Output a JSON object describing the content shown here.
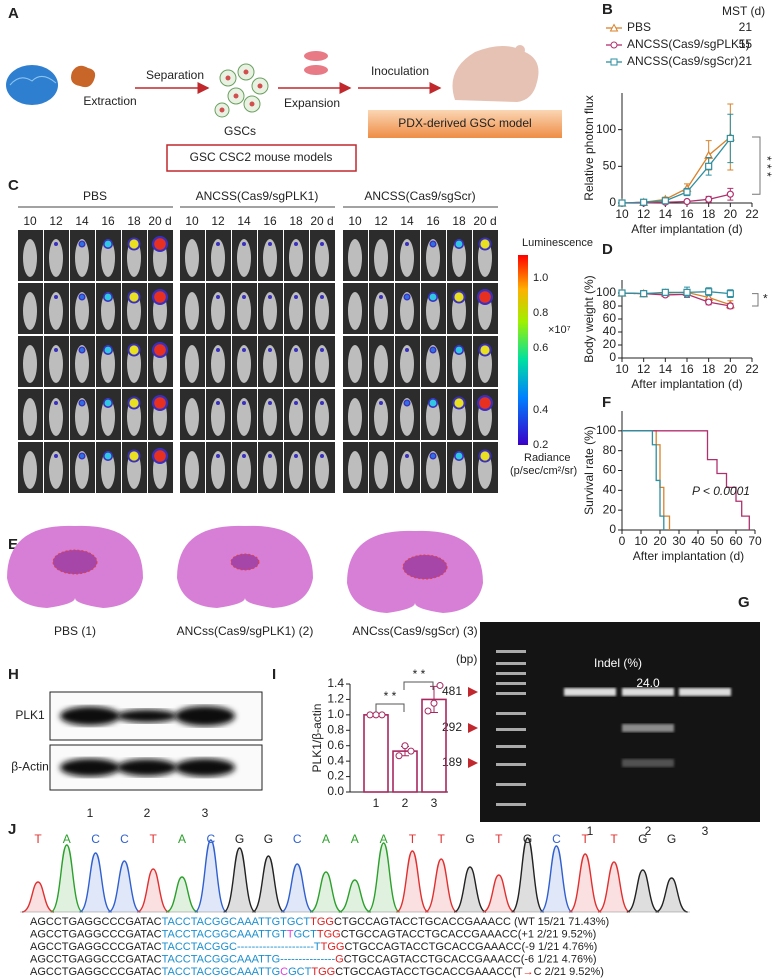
{
  "panel_labels": [
    "A",
    "B",
    "C",
    "D",
    "E",
    "F",
    "G",
    "H",
    "I",
    "J"
  ],
  "panel_a": {
    "steps": [
      "Extraction",
      "Separation",
      "GSCs",
      "Expansion",
      "Inoculation"
    ],
    "model": "PDX-derived GSC model",
    "box": "GSC CSC2 mouse models"
  },
  "panel_c": {
    "groups": [
      "PBS",
      "ANCSS(Cas9/sgPLK1)",
      "ANCSS(Cas9/sgScr)"
    ],
    "days": [
      "10",
      "12",
      "14",
      "16",
      "18",
      "20 d"
    ],
    "colorbar": {
      "title": "Luminescence",
      "ticks": [
        "1.0",
        "0.8",
        "0.6",
        "0.4",
        "0.2"
      ],
      "multiplier": "×10⁷",
      "unit_title": "Radiance",
      "unit": "(p/sec/cm²/sr)"
    }
  },
  "panel_e": {
    "labels": [
      "PBS (1)",
      "ANCss(Cas9/sgPLK1) (2)",
      "ANCss(Cas9/sgScr) (3)"
    ]
  },
  "panel_g": {
    "unit": "(bp)",
    "markers": [
      "481",
      "292",
      "189"
    ],
    "indel_title": "Indel (%)",
    "indel": "24.0",
    "lanes": [
      "1",
      "2",
      "3"
    ]
  },
  "panel_h": {
    "rows": [
      "PLK1",
      "β-Actin"
    ],
    "lanes": [
      "1",
      "2",
      "3"
    ]
  },
  "panel_j": {
    "bases": [
      "T",
      "A",
      "C",
      "C",
      "T",
      "A",
      "C",
      "G",
      "G",
      "C",
      "A",
      "A",
      "A",
      "T",
      "T",
      "G",
      "T",
      "G",
      "C",
      "T",
      "T",
      "G",
      "G"
    ],
    "lines": [
      [
        {
          "text": "AGCCTGAGGCCCGATAC",
          "color": "#222222"
        },
        {
          "text": "TACCTACGGCAAATTGTGCT",
          "color": "#1a8fd0"
        },
        {
          "text": "TGG",
          "color": "#e02020"
        },
        {
          "text": "CTGCCAGTACCTGCACCGAAACC",
          "color": "#222222"
        },
        {
          "text": "  (WT 15/21 71.43%)",
          "color": "#222222"
        }
      ],
      [
        {
          "text": "AGCCTGAGGCCCGATAC",
          "color": "#222222"
        },
        {
          "text": "TACCTACGGCAAATTGT",
          "color": "#1a8fd0"
        },
        {
          "text": "T",
          "color": "#e040e0"
        },
        {
          "text": "GCT",
          "color": "#1a8fd0"
        },
        {
          "text": "TGG",
          "color": "#e02020"
        },
        {
          "text": "CTGCCAGTACCTGCACCGAAACC",
          "color": "#222222"
        },
        {
          "text": "(+1 2/21 9.52%)",
          "color": "#222222"
        }
      ],
      [
        {
          "text": "AGCCTGAGGCCCGATAC",
          "color": "#222222"
        },
        {
          "text": "TACCTACGGC---------------------T",
          "color": "#1a8fd0"
        },
        {
          "text": "TGG",
          "color": "#e02020"
        },
        {
          "text": "CTGCCAGTACCTGCACCGAAACC",
          "color": "#222222"
        },
        {
          "text": "(-9 1/21 4.76%)",
          "color": "#222222"
        }
      ],
      [
        {
          "text": "AGCCTGAGGCCCGATAC",
          "color": "#222222"
        },
        {
          "text": "TACCTACGGCAAATTG---------------",
          "color": "#1a8fd0"
        },
        {
          "text": "G",
          "color": "#e02020"
        },
        {
          "text": "CTGCCAGTACCTGCACCGAAACC",
          "color": "#222222"
        },
        {
          "text": "(-6 1/21 4.76%)",
          "color": "#222222"
        }
      ],
      [
        {
          "text": "AGCCTGAGGCCCGATAC",
          "color": "#222222"
        },
        {
          "text": "TACCTACGGCAAATTG",
          "color": "#1a8fd0"
        },
        {
          "text": "C",
          "color": "#e040e0"
        },
        {
          "text": "GCT",
          "color": "#1a8fd0"
        },
        {
          "text": "TGG",
          "color": "#e02020"
        },
        {
          "text": "CTGCCAGTACCTGCACCGAAACC",
          "color": "#222222"
        },
        {
          "text": "(T",
          "color": "#222222"
        },
        {
          "text": "→",
          "color": "#e02020"
        },
        {
          "text": "C 2/21 9.52%)",
          "color": "#222222"
        }
      ]
    ]
  },
  "chart_data": [
    {
      "type": "line",
      "ylabel": "Relative photon flux",
      "xlabel": "After implantation (d)",
      "x": [
        10,
        12,
        14,
        16,
        18,
        20
      ],
      "xlim": [
        10,
        22
      ],
      "xticks": [
        10,
        12,
        14,
        16,
        18,
        20,
        22
      ],
      "ylim": [
        0,
        150
      ],
      "yticks": [
        0,
        50,
        100
      ],
      "legend_title": "MST (d)",
      "significance": "* * *",
      "series": [
        {
          "name": "PBS",
          "color": "#d9822b",
          "marker": "triangle",
          "mst": 21,
          "values": [
            0,
            1,
            5,
            20,
            65,
            90
          ],
          "errors": [
            0,
            1,
            3,
            6,
            20,
            45
          ]
        },
        {
          "name": "ANCSS(Cas9/sgPLK1)",
          "color": "#b0306e",
          "marker": "circle",
          "mst": 55,
          "values": [
            0,
            0,
            1,
            2,
            5,
            12
          ],
          "errors": [
            0,
            0,
            1,
            2,
            4,
            8
          ]
        },
        {
          "name": "ANCSS(Cas9/sgScr)",
          "color": "#2e8fa0",
          "marker": "square",
          "mst": 21,
          "values": [
            0,
            1,
            3,
            15,
            50,
            88
          ],
          "errors": [
            0,
            1,
            3,
            5,
            12,
            33
          ]
        }
      ]
    },
    {
      "type": "line",
      "ylabel": "Body weight (%)",
      "xlabel": "After implantation (d)",
      "x": [
        10,
        12,
        14,
        16,
        18,
        20
      ],
      "xlim": [
        10,
        22
      ],
      "xticks": [
        10,
        12,
        14,
        16,
        18,
        20,
        22
      ],
      "ylim": [
        0,
        120
      ],
      "yticks": [
        0,
        20,
        40,
        60,
        80,
        100
      ],
      "significance": "*",
      "series": [
        {
          "color": "#d9822b",
          "marker": "triangle",
          "values": [
            100,
            99,
            100,
            101,
            93,
            82
          ],
          "errors": [
            4,
            2,
            2,
            3,
            5,
            6
          ]
        },
        {
          "color": "#b0306e",
          "marker": "circle",
          "values": [
            100,
            99,
            97,
            98,
            86,
            80
          ],
          "errors": [
            3,
            2,
            2,
            2,
            4,
            4
          ]
        },
        {
          "color": "#2e8fa0",
          "marker": "square",
          "values": [
            100,
            99,
            101,
            101,
            102,
            99
          ],
          "errors": [
            3,
            2,
            2,
            8,
            6,
            6
          ]
        }
      ]
    },
    {
      "type": "step",
      "ylabel": "Survival rate (%)",
      "xlabel": "After implantation (d)",
      "xlim": [
        0,
        70
      ],
      "xticks": [
        0,
        10,
        20,
        30,
        40,
        50,
        60,
        70
      ],
      "ylim": [
        0,
        120
      ],
      "yticks": [
        0,
        20,
        40,
        60,
        80,
        100
      ],
      "annotation": "P < 0.0001",
      "series": [
        {
          "color": "#d9822b",
          "x": [
            0,
            18,
            20,
            22,
            25
          ],
          "values": [
            100,
            86,
            43,
            14,
            0
          ]
        },
        {
          "color": "#b0306e",
          "x": [
            0,
            45,
            50,
            55,
            60,
            63,
            67
          ],
          "values": [
            100,
            71,
            57,
            43,
            29,
            14,
            0
          ]
        },
        {
          "color": "#2e8fa0",
          "x": [
            0,
            16,
            18,
            20,
            22
          ],
          "values": [
            100,
            86,
            50,
            14,
            0
          ]
        }
      ]
    },
    {
      "type": "bar",
      "ylabel": "PLK1/β-actin",
      "categories": [
        "1",
        "2",
        "3"
      ],
      "values": [
        1.0,
        0.53,
        1.2
      ],
      "errors": [
        0,
        0.06,
        0.17
      ],
      "points": [
        [
          1.0,
          1.0,
          1.0
        ],
        [
          0.47,
          0.6,
          0.53
        ],
        [
          1.05,
          1.15,
          1.38
        ]
      ],
      "color": "#a8275f",
      "ylim": [
        0,
        1.4
      ],
      "yticks": [
        {
          "value": 0,
          "label": "0.0"
        },
        0.2,
        0.4,
        0.6,
        0.8,
        {
          "value": 1,
          "label": "1.0"
        },
        1.2,
        1.4
      ],
      "significance": [
        "* *",
        "* *"
      ]
    }
  ]
}
